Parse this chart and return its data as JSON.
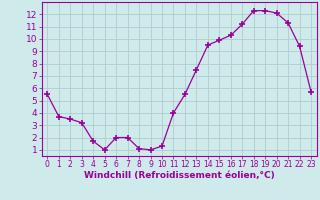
{
  "x": [
    0,
    1,
    2,
    3,
    4,
    5,
    6,
    7,
    8,
    9,
    10,
    11,
    12,
    13,
    14,
    15,
    16,
    17,
    18,
    19,
    20,
    21,
    22,
    23
  ],
  "y": [
    5.5,
    3.7,
    3.5,
    3.2,
    1.7,
    1.0,
    2.0,
    2.0,
    1.1,
    1.0,
    1.3,
    4.0,
    5.5,
    7.5,
    9.5,
    9.9,
    10.3,
    11.2,
    12.3,
    12.3,
    12.1,
    11.3,
    9.4,
    5.7
  ],
  "line_color": "#990099",
  "marker": "+",
  "marker_size": 4,
  "marker_lw": 1.2,
  "bg_color": "#ceeaea",
  "grid_color": "#b0cccc",
  "xlabel": "Windchill (Refroidissement éolien,°C)",
  "xlim": [
    -0.5,
    23.5
  ],
  "ylim": [
    0.5,
    13.0
  ],
  "yticks": [
    1,
    2,
    3,
    4,
    5,
    6,
    7,
    8,
    9,
    10,
    11,
    12
  ],
  "xticks": [
    0,
    1,
    2,
    3,
    4,
    5,
    6,
    7,
    8,
    9,
    10,
    11,
    12,
    13,
    14,
    15,
    16,
    17,
    18,
    19,
    20,
    21,
    22,
    23
  ],
  "tick_color": "#990099",
  "label_color": "#990099",
  "spine_color": "#990099",
  "xlabel_fontsize": 6.5,
  "tick_fontsize_x": 5.5,
  "tick_fontsize_y": 6.5
}
